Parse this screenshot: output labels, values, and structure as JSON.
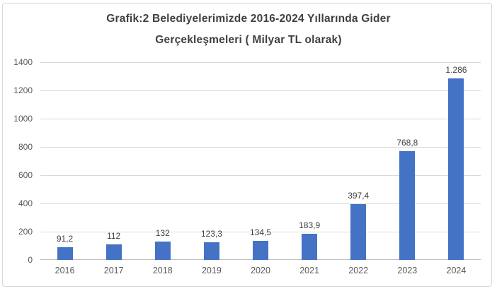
{
  "title": {
    "line1": "Grafik:2 Belediyelerimizde 2016-2024 Yıllarında Gider",
    "line2": "Gerçekleşmeleri ( Milyar TL olarak)"
  },
  "colors": {
    "bar": "#4472c4",
    "gridline": "#d9d9d9",
    "axis_line": "#bfbfbf",
    "title_text": "#404040",
    "tick_text": "#595959",
    "value_label_text": "#404040",
    "frame_border": "#d8d8d8",
    "background": "#ffffff"
  },
  "chart_data": {
    "type": "bar",
    "title": "Grafik:2 Belediyelerimizde 2016-2024 Yıllarında Gider Gerçekleşmeleri ( Milyar TL olarak)",
    "categories": [
      "2016",
      "2017",
      "2018",
      "2019",
      "2020",
      "2021",
      "2022",
      "2023",
      "2024"
    ],
    "values": [
      91.2,
      112,
      132,
      123.3,
      134.5,
      183.9,
      397.4,
      768.8,
      1286
    ],
    "value_labels": [
      "91,2",
      "112",
      "132",
      "123,3",
      "134,5",
      "183,9",
      "397,4",
      "768,8",
      "1.286"
    ],
    "xlabel": "",
    "ylabel": "",
    "ylim": [
      0,
      1400
    ],
    "yticks": [
      0,
      200,
      400,
      600,
      800,
      1000,
      1200,
      1400
    ],
    "ytick_labels": [
      "0",
      "200",
      "400",
      "600",
      "800",
      "1000",
      "1200",
      "1400"
    ],
    "grid": true,
    "legend": false,
    "bar_color": "#4472c4"
  }
}
